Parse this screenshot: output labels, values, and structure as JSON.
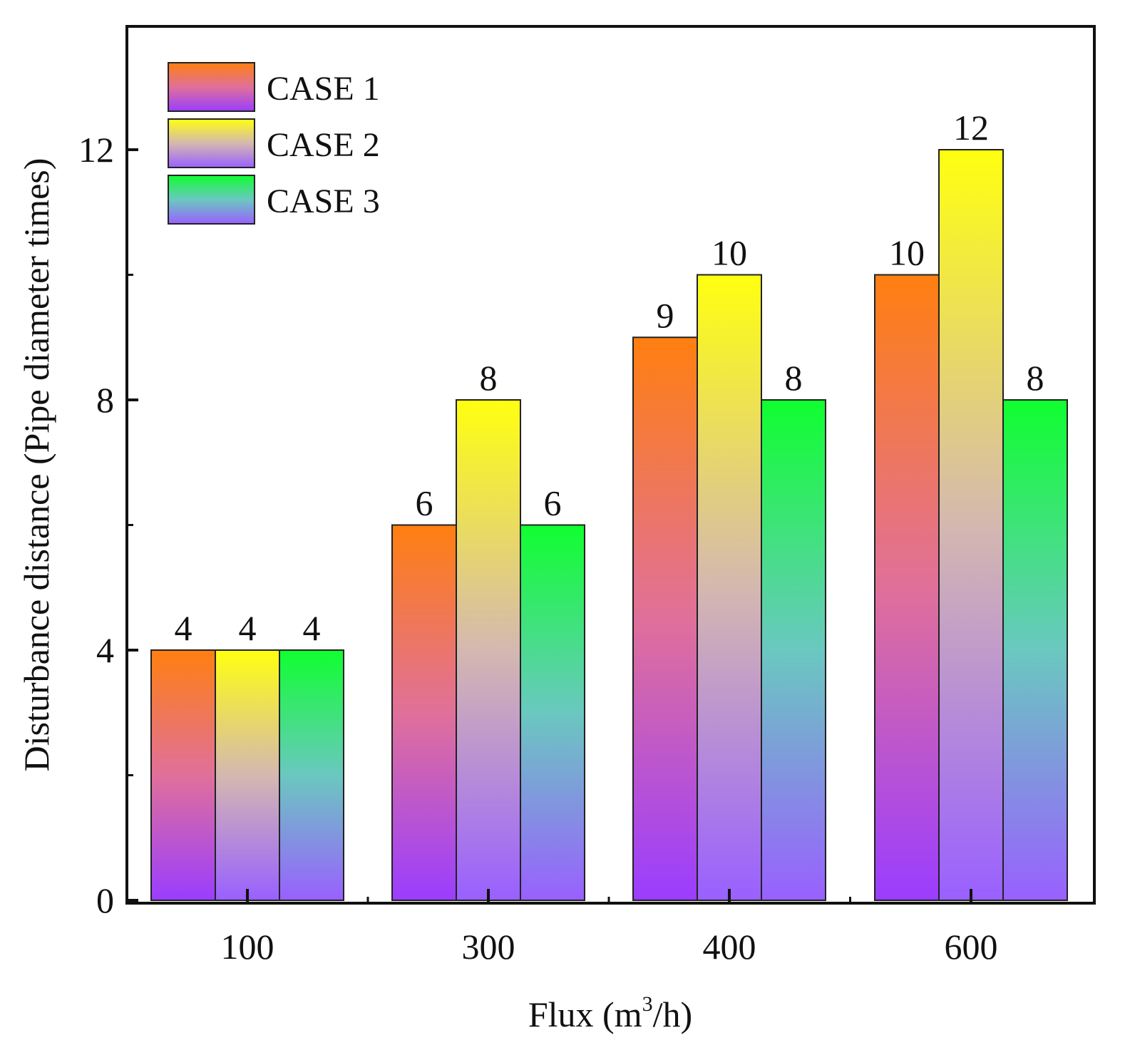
{
  "chart_data": {
    "type": "bar",
    "title": "",
    "xlabel": "Flux (m3/h)",
    "xlabel_parts": {
      "prefix": "Flux (m",
      "superscript": "3",
      "suffix": "/h)"
    },
    "ylabel": "Disturbance distance (Pipe diameter times)",
    "categories": [
      "100",
      "300",
      "400",
      "600"
    ],
    "ylim": [
      0,
      14
    ],
    "yticks": [
      0,
      4,
      8,
      12
    ],
    "ytick_labels": [
      "0",
      "4",
      "8",
      "12"
    ],
    "grid": false,
    "legend_position": "top-left",
    "series": [
      {
        "name": "CASE 1",
        "values": [
          4,
          6,
          9,
          10
        ],
        "labels": [
          "4",
          "6",
          "9",
          "10"
        ],
        "gradient": {
          "top": "#ff7f10",
          "mid": "#e0709a",
          "bottom": "#9a3dff"
        }
      },
      {
        "name": "CASE 2",
        "values": [
          4,
          8,
          10,
          12
        ],
        "labels": [
          "4",
          "8",
          "10",
          "12"
        ],
        "gradient": {
          "top": "#ffff10",
          "mid": "#d4b8b0",
          "bottom": "#9960ff"
        }
      },
      {
        "name": "CASE 3",
        "values": [
          4,
          6,
          8,
          8
        ],
        "labels": [
          "4",
          "6",
          "8",
          "8"
        ],
        "gradient": {
          "top": "#10ff30",
          "mid": "#6ac8c0",
          "bottom": "#9960ff"
        }
      }
    ]
  }
}
